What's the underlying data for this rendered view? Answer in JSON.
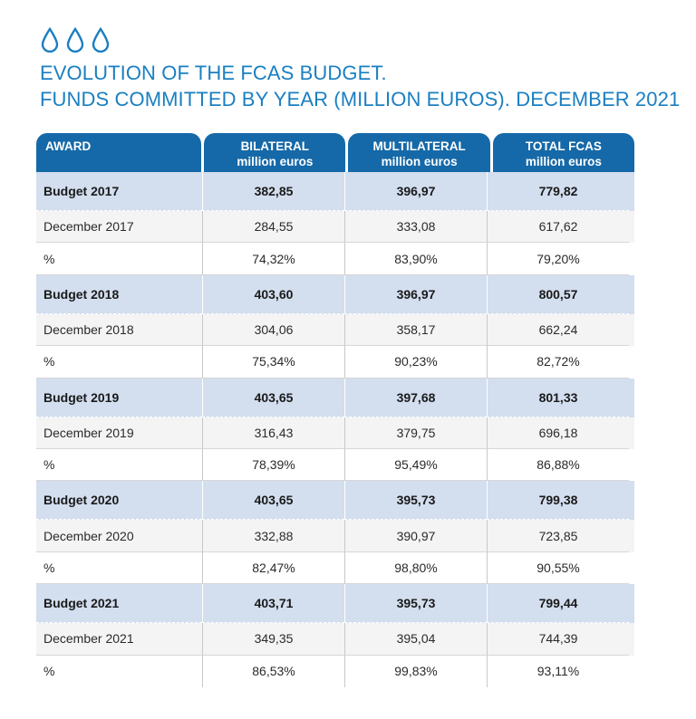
{
  "title": {
    "line1": "EVOLUTION OF THE FCAS BUDGET.",
    "line2": "FUNDS COMMITTED BY YEAR (MILLION EUROS). DECEMBER 2021"
  },
  "icons": [
    "water-drop-icon",
    "water-drop-icon",
    "water-drop-icon"
  ],
  "colors": {
    "title": "#1a7fc1",
    "header_bg": "#1569a8",
    "budget_row_bg": "#d3deef"
  },
  "header": {
    "award": "AWARD",
    "bilateral": [
      "BILATERAL",
      "million euros"
    ],
    "multilateral": [
      "MULTILATERAL",
      "million euros"
    ],
    "total": [
      "TOTAL FCAS",
      "million euros"
    ]
  },
  "rows": [
    {
      "label": "Budget 2017",
      "bilateral": "382,85",
      "multilateral": "396,97",
      "total": "779,82"
    },
    {
      "label": "December 2017",
      "bilateral": "284,55",
      "multilateral": "333,08",
      "total": "617,62"
    },
    {
      "label": "%",
      "bilateral": "74,32%",
      "multilateral": "83,90%",
      "total": "79,20%"
    },
    {
      "label": "Budget 2018",
      "bilateral": "403,60",
      "multilateral": "396,97",
      "total": "800,57"
    },
    {
      "label": "December 2018",
      "bilateral": "304,06",
      "multilateral": "358,17",
      "total": "662,24"
    },
    {
      "label": "%",
      "bilateral": "75,34%",
      "multilateral": "90,23%",
      "total": "82,72%"
    },
    {
      "label": "Budget 2019",
      "bilateral": "403,65",
      "multilateral": "397,68",
      "total": "801,33"
    },
    {
      "label": "December 2019",
      "bilateral": "316,43",
      "multilateral": "379,75",
      "total": "696,18"
    },
    {
      "label": "%",
      "bilateral": "78,39%",
      "multilateral": "95,49%",
      "total": "86,88%"
    },
    {
      "label": "Budget 2020",
      "bilateral": "403,65",
      "multilateral": "395,73",
      "total": "799,38"
    },
    {
      "label": "December 2020",
      "bilateral": "332,88",
      "multilateral": "390,97",
      "total": "723,85"
    },
    {
      "label": "%",
      "bilateral": "82,47%",
      "multilateral": "98,80%",
      "total": "90,55%"
    },
    {
      "label": "Budget 2021",
      "bilateral": "403,71",
      "multilateral": "395,73",
      "total": "799,44"
    },
    {
      "label": "December 2021",
      "bilateral": "349,35",
      "multilateral": "395,04",
      "total": "744,39"
    },
    {
      "label": "%",
      "bilateral": "86,53%",
      "multilateral": "99,83%",
      "total": "93,11%"
    }
  ]
}
